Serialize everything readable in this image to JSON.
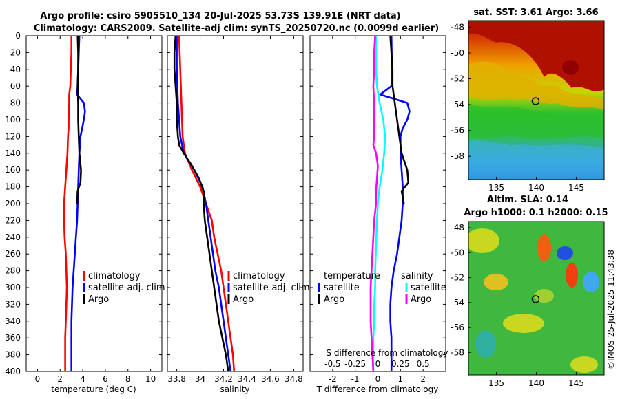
{
  "title_line1": "Argo profile: csiro 5905510_134 20-Jul-2025 53.73S 139.91E (NRT data)",
  "title_line2": "Climatology: CARS2009. Satellite-adj clim: synTS_20250720.nc (0.0099d earlier)",
  "colors": {
    "climatology": "#ff0000",
    "satellite": "#0000ff",
    "argo": "#000000",
    "sat_salinity": "#00ffff",
    "clim_salinity": "#ff00ff"
  },
  "depth_ticks": [
    "0",
    "20",
    "40",
    "60",
    "80",
    "100",
    "120",
    "140",
    "160",
    "180",
    "200",
    "220",
    "240",
    "260",
    "280",
    "300",
    "320",
    "340",
    "360",
    "380",
    "400"
  ],
  "chart_data": [
    {
      "type": "line",
      "title": "",
      "xlabel": "temperature (deg C)",
      "ylabel": "",
      "xlim": [
        -1,
        11
      ],
      "ylim": [
        400,
        0
      ],
      "xticks": [
        "0",
        "2",
        "4",
        "6",
        "8",
        "10"
      ],
      "legend": [
        "climatology",
        "satellite-adj. clim",
        "Argo"
      ],
      "series": [
        {
          "name": "climatology",
          "color": "#ff0000",
          "points": [
            [
              3.0,
              0
            ],
            [
              3.0,
              20
            ],
            [
              2.95,
              40
            ],
            [
              2.9,
              60
            ],
            [
              2.8,
              70
            ],
            [
              2.8,
              80
            ],
            [
              2.75,
              100
            ],
            [
              2.75,
              110
            ],
            [
              2.7,
              120
            ],
            [
              2.65,
              140
            ],
            [
              2.55,
              160
            ],
            [
              2.45,
              180
            ],
            [
              2.35,
              200
            ],
            [
              2.35,
              220
            ],
            [
              2.4,
              240
            ],
            [
              2.5,
              260
            ],
            [
              2.55,
              280
            ],
            [
              2.6,
              300
            ],
            [
              2.55,
              320
            ],
            [
              2.5,
              340
            ],
            [
              2.45,
              360
            ],
            [
              2.45,
              380
            ],
            [
              2.45,
              400
            ]
          ]
        },
        {
          "name": "satellite-adj. clim",
          "color": "#0000ff",
          "points": [
            [
              3.7,
              0
            ],
            [
              3.65,
              20
            ],
            [
              3.6,
              40
            ],
            [
              3.55,
              60
            ],
            [
              3.5,
              70
            ],
            [
              4.1,
              80
            ],
            [
              4.2,
              90
            ],
            [
              4.1,
              100
            ],
            [
              3.95,
              110
            ],
            [
              3.8,
              120
            ],
            [
              3.7,
              140
            ],
            [
              3.65,
              160
            ],
            [
              3.6,
              180
            ],
            [
              3.55,
              200
            ],
            [
              3.5,
              220
            ],
            [
              3.4,
              240
            ],
            [
              3.3,
              260
            ],
            [
              3.2,
              280
            ],
            [
              3.1,
              300
            ],
            [
              3.05,
              320
            ],
            [
              3.0,
              340
            ],
            [
              3.0,
              360
            ],
            [
              3.0,
              380
            ],
            [
              3.0,
              400
            ]
          ]
        },
        {
          "name": "Argo",
          "color": "#000000",
          "points": [
            [
              3.55,
              0
            ],
            [
              3.6,
              20
            ],
            [
              3.6,
              40
            ],
            [
              3.55,
              60
            ],
            [
              3.6,
              80
            ],
            [
              3.6,
              100
            ],
            [
              3.65,
              120
            ],
            [
              3.7,
              140
            ],
            [
              3.85,
              160
            ],
            [
              3.8,
              175
            ],
            [
              3.55,
              185
            ],
            [
              3.5,
              200
            ]
          ]
        }
      ]
    },
    {
      "type": "line",
      "title": "",
      "xlabel": "salinity",
      "ylabel": "",
      "xlim": [
        33.72,
        34.88
      ],
      "ylim": [
        400,
        0
      ],
      "xticks": [
        "33.8",
        "34",
        "34.2",
        "34.4",
        "34.6",
        "34.8"
      ],
      "legend": [
        "climatology",
        "satellite-adj. clim",
        "Argo"
      ],
      "series": [
        {
          "name": "climatology",
          "color": "#ff0000",
          "points": [
            [
              33.82,
              0
            ],
            [
              33.83,
              40
            ],
            [
              33.84,
              80
            ],
            [
              33.85,
              120
            ],
            [
              33.87,
              140
            ],
            [
              33.93,
              160
            ],
            [
              34.0,
              180
            ],
            [
              34.05,
              200
            ],
            [
              34.1,
              220
            ],
            [
              34.12,
              240
            ],
            [
              34.15,
              260
            ],
            [
              34.18,
              280
            ],
            [
              34.2,
              300
            ],
            [
              34.22,
              320
            ],
            [
              34.24,
              340
            ],
            [
              34.26,
              360
            ],
            [
              34.28,
              380
            ],
            [
              34.29,
              400
            ]
          ]
        },
        {
          "name": "satellite-adj. clim",
          "color": "#0000ff",
          "points": [
            [
              33.8,
              0
            ],
            [
              33.8,
              40
            ],
            [
              33.81,
              80
            ],
            [
              33.82,
              100
            ],
            [
              33.83,
              120
            ],
            [
              33.86,
              140
            ],
            [
              33.95,
              160
            ],
            [
              34.02,
              180
            ],
            [
              34.05,
              200
            ],
            [
              34.07,
              220
            ],
            [
              34.1,
              250
            ],
            [
              34.13,
              280
            ],
            [
              34.16,
              300
            ],
            [
              34.18,
              320
            ],
            [
              34.2,
              340
            ],
            [
              34.22,
              360
            ],
            [
              34.24,
              380
            ],
            [
              34.26,
              400
            ]
          ]
        },
        {
          "name": "Argo",
          "color": "#000000",
          "points": [
            [
              33.79,
              0
            ],
            [
              33.78,
              20
            ],
            [
              33.78,
              40
            ],
            [
              33.79,
              60
            ],
            [
              33.8,
              80
            ],
            [
              33.8,
              100
            ],
            [
              33.81,
              120
            ],
            [
              33.82,
              130
            ],
            [
              33.86,
              140
            ],
            [
              33.93,
              155
            ],
            [
              33.99,
              170
            ],
            [
              34.03,
              185
            ],
            [
              34.03,
              200
            ],
            [
              34.04,
              220
            ],
            [
              34.06,
              240
            ],
            [
              34.08,
              260
            ],
            [
              34.1,
              280
            ],
            [
              34.12,
              300
            ],
            [
              34.14,
              320
            ],
            [
              34.16,
              340
            ],
            [
              34.19,
              360
            ],
            [
              34.22,
              380
            ],
            [
              34.24,
              400
            ]
          ]
        }
      ]
    },
    {
      "type": "line",
      "title": "",
      "xlabel": "T difference from climatology",
      "xlabel2": "S difference from climatology",
      "ylabel": "",
      "xlim": [
        -3,
        3
      ],
      "ylim": [
        400,
        0
      ],
      "xticks": [
        "-2",
        "-1",
        "0",
        "1",
        "2"
      ],
      "xticks2": [
        "-0.5",
        "-0.25",
        "0",
        "0.25",
        "0.5"
      ],
      "legend_left_title": "temperature",
      "legend_right_title": "salinity",
      "legend": [
        "satellite",
        "Argo",
        "satellite",
        "Argo"
      ],
      "series": [
        {
          "name": "temperature satellite",
          "color": "#0000ff",
          "points": [
            [
              0.6,
              0
            ],
            [
              0.62,
              40
            ],
            [
              0.6,
              60
            ],
            [
              0.1,
              70
            ],
            [
              1.3,
              80
            ],
            [
              1.4,
              90
            ],
            [
              1.3,
              100
            ],
            [
              1.1,
              110
            ],
            [
              1.0,
              120
            ],
            [
              1.0,
              140
            ],
            [
              1.05,
              160
            ],
            [
              1.1,
              180
            ],
            [
              1.1,
              200
            ],
            [
              1.05,
              220
            ],
            [
              0.95,
              240
            ],
            [
              0.85,
              260
            ],
            [
              0.7,
              280
            ],
            [
              0.6,
              300
            ],
            [
              0.55,
              320
            ],
            [
              0.55,
              340
            ],
            [
              0.6,
              360
            ],
            [
              0.6,
              380
            ],
            [
              0.6,
              400
            ]
          ]
        },
        {
          "name": "temperature Argo",
          "color": "#000000",
          "points": [
            [
              0.55,
              0
            ],
            [
              0.6,
              20
            ],
            [
              0.65,
              40
            ],
            [
              0.65,
              60
            ],
            [
              0.75,
              80
            ],
            [
              0.85,
              100
            ],
            [
              0.95,
              120
            ],
            [
              1.05,
              140
            ],
            [
              1.3,
              160
            ],
            [
              1.35,
              175
            ],
            [
              1.05,
              185
            ],
            [
              1.15,
              200
            ]
          ]
        },
        {
          "name": "salinity satellite",
          "color": "#00ffff",
          "points": [
            [
              -0.02,
              0
            ],
            [
              -0.02,
              40
            ],
            [
              -0.01,
              60
            ],
            [
              0.02,
              80
            ],
            [
              0.06,
              100
            ],
            [
              0.08,
              120
            ],
            [
              0.07,
              140
            ],
            [
              0.05,
              160
            ],
            [
              0.02,
              180
            ],
            [
              0.0,
              200
            ],
            [
              -0.01,
              220
            ],
            [
              -0.02,
              250
            ],
            [
              -0.03,
              280
            ],
            [
              -0.03,
              300
            ],
            [
              -0.04,
              320
            ],
            [
              -0.04,
              340
            ],
            [
              -0.05,
              360
            ],
            [
              -0.05,
              380
            ],
            [
              -0.05,
              400
            ]
          ]
        },
        {
          "name": "salinity Argo",
          "color": "#ff00ff",
          "points": [
            [
              -0.03,
              0
            ],
            [
              -0.04,
              20
            ],
            [
              -0.04,
              40
            ],
            [
              -0.05,
              60
            ],
            [
              -0.04,
              80
            ],
            [
              -0.04,
              100
            ],
            [
              -0.04,
              120
            ],
            [
              -0.05,
              130
            ],
            [
              -0.02,
              140
            ],
            [
              0.0,
              155
            ],
            [
              -0.01,
              170
            ],
            [
              -0.02,
              185
            ],
            [
              -0.02,
              200
            ],
            [
              -0.04,
              220
            ],
            [
              -0.05,
              240
            ],
            [
              -0.06,
              260
            ],
            [
              -0.07,
              280
            ],
            [
              -0.08,
              300
            ],
            [
              -0.08,
              320
            ],
            [
              -0.08,
              340
            ],
            [
              -0.07,
              360
            ],
            [
              -0.06,
              380
            ],
            [
              -0.05,
              400
            ]
          ]
        }
      ]
    },
    {
      "type": "heatmap",
      "title": "sat. SST: 3.61 Argo: 3.66",
      "xlim": [
        131.5,
        148.5
      ],
      "ylim": [
        -59.8,
        -47.5
      ],
      "xticks": [
        "135",
        "140",
        "145"
      ],
      "yticks": [
        "-48",
        "-50",
        "-52",
        "-54",
        "-56",
        "-58"
      ],
      "marker": {
        "lon": 139.91,
        "lat": -53.73
      }
    },
    {
      "type": "heatmap",
      "title": "Altim. SLA: 0.14",
      "subtitle": "Argo h1000: 0.1 h2000: 0.15",
      "xlim": [
        131.5,
        148.5
      ],
      "ylim": [
        -59.8,
        -47.5
      ],
      "xticks": [
        "135",
        "140",
        "145"
      ],
      "yticks": [
        "-48",
        "-50",
        "-52",
        "-54",
        "-56",
        "-58"
      ],
      "marker": {
        "lon": 139.91,
        "lat": -53.73
      }
    }
  ],
  "credit": "©IMOS 25-Jul-2025 11:43:38"
}
